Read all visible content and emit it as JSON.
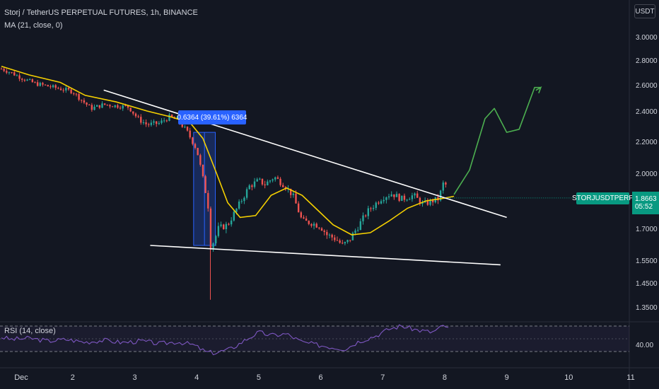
{
  "header": {
    "symbol_line": "Storj / TetherUS PERPETUAL FUTURES, 1h, BINANCE",
    "indicator": "MA (21, close, 0)",
    "currency_button": "USDT"
  },
  "price_tag": {
    "symbol": "STORJUSDTPERP",
    "price": "1.8663",
    "countdown": "05:52"
  },
  "measure_label": "0.6364 (39.61%) 6364",
  "rsi": {
    "label": "RSI (14, close)",
    "level_label": "40.00"
  },
  "colors": {
    "background": "#131722",
    "up": "#26a69a",
    "down": "#ef5350",
    "ma": "#f5d000",
    "projection": "#4caf50",
    "rsi": "#7e57c2",
    "trendline": "#ffffff"
  },
  "chart_data": {
    "type": "candlestick",
    "y_axis_labels": [
      "3.0000",
      "2.8000",
      "2.6000",
      "2.4000",
      "2.2000",
      "2.0000",
      "1.7000",
      "1.5500",
      "1.4500",
      "1.3500"
    ],
    "x_axis_labels": [
      "Dec",
      "2",
      "3",
      "4",
      "5",
      "6",
      "7",
      "8",
      "9",
      "10",
      "11"
    ],
    "x_range_days": [
      0.85,
      11.0
    ],
    "y_range": [
      1.3,
      3.1
    ],
    "close_series": [
      [
        0.85,
        2.73
      ],
      [
        1.0,
        2.7
      ],
      [
        1.2,
        2.65
      ],
      [
        1.4,
        2.61
      ],
      [
        1.6,
        2.59
      ],
      [
        1.8,
        2.57
      ],
      [
        2.0,
        2.55
      ],
      [
        2.15,
        2.48
      ],
      [
        2.3,
        2.42
      ],
      [
        2.5,
        2.45
      ],
      [
        2.7,
        2.44
      ],
      [
        2.9,
        2.43
      ],
      [
        3.05,
        2.35
      ],
      [
        3.2,
        2.31
      ],
      [
        3.4,
        2.32
      ],
      [
        3.55,
        2.36
      ],
      [
        3.7,
        2.34
      ],
      [
        3.85,
        2.26
      ],
      [
        4.0,
        2.15
      ],
      [
        4.1,
        1.97
      ],
      [
        4.18,
        1.84
      ],
      [
        4.22,
        1.62
      ],
      [
        4.28,
        1.64
      ],
      [
        4.35,
        1.7
      ],
      [
        4.5,
        1.72
      ],
      [
        4.7,
        1.84
      ],
      [
        4.85,
        1.93
      ],
      [
        5.0,
        1.96
      ],
      [
        5.1,
        1.94
      ],
      [
        5.25,
        1.98
      ],
      [
        5.4,
        1.94
      ],
      [
        5.55,
        1.88
      ],
      [
        5.7,
        1.74
      ],
      [
        5.85,
        1.73
      ],
      [
        6.0,
        1.71
      ],
      [
        6.1,
        1.67
      ],
      [
        6.25,
        1.65
      ],
      [
        6.35,
        1.62
      ],
      [
        6.45,
        1.64
      ],
      [
        6.6,
        1.71
      ],
      [
        6.75,
        1.79
      ],
      [
        6.9,
        1.84
      ],
      [
        7.0,
        1.87
      ],
      [
        7.15,
        1.89
      ],
      [
        7.3,
        1.86
      ],
      [
        7.5,
        1.88
      ],
      [
        7.65,
        1.83
      ],
      [
        7.8,
        1.85
      ],
      [
        7.9,
        1.86
      ],
      [
        8.0,
        1.97
      ],
      [
        8.05,
        1.87
      ]
    ],
    "ma_series": [
      [
        0.85,
        2.75
      ],
      [
        1.3,
        2.68
      ],
      [
        1.8,
        2.62
      ],
      [
        2.2,
        2.52
      ],
      [
        2.7,
        2.47
      ],
      [
        3.2,
        2.4
      ],
      [
        3.6,
        2.36
      ],
      [
        3.9,
        2.32
      ],
      [
        4.1,
        2.22
      ],
      [
        4.3,
        2.02
      ],
      [
        4.5,
        1.84
      ],
      [
        4.7,
        1.76
      ],
      [
        4.95,
        1.77
      ],
      [
        5.2,
        1.88
      ],
      [
        5.45,
        1.92
      ],
      [
        5.7,
        1.88
      ],
      [
        5.95,
        1.8
      ],
      [
        6.2,
        1.72
      ],
      [
        6.5,
        1.67
      ],
      [
        6.8,
        1.68
      ],
      [
        7.1,
        1.74
      ],
      [
        7.4,
        1.81
      ],
      [
        7.7,
        1.85
      ],
      [
        8.0,
        1.865
      ],
      [
        8.15,
        1.875
      ]
    ],
    "trendlines": [
      {
        "name": "upper",
        "points": [
          [
            2.5,
            2.56
          ],
          [
            9.0,
            1.76
          ]
        ]
      },
      {
        "name": "lower",
        "points": [
          [
            3.25,
            1.62
          ],
          [
            8.9,
            1.53
          ]
        ]
      }
    ],
    "measure_box": {
      "x_range": [
        3.95,
        4.3
      ],
      "y_range": [
        1.62,
        2.26
      ]
    },
    "projection": [
      [
        8.15,
        1.885
      ],
      [
        8.4,
        2.02
      ],
      [
        8.65,
        2.35
      ],
      [
        8.8,
        2.42
      ],
      [
        9.0,
        2.26
      ],
      [
        9.2,
        2.28
      ],
      [
        9.45,
        2.58
      ],
      [
        9.55,
        2.58
      ]
    ],
    "rsi_series": [
      [
        0.85,
        0.58
      ],
      [
        1.0,
        0.52
      ],
      [
        1.3,
        0.55
      ],
      [
        1.6,
        0.48
      ],
      [
        1.9,
        0.52
      ],
      [
        2.2,
        0.45
      ],
      [
        2.5,
        0.5
      ],
      [
        2.8,
        0.44
      ],
      [
        3.1,
        0.48
      ],
      [
        3.4,
        0.41
      ],
      [
        3.7,
        0.46
      ],
      [
        3.95,
        0.38
      ],
      [
        4.15,
        0.2
      ],
      [
        4.3,
        0.18
      ],
      [
        4.55,
        0.28
      ],
      [
        4.8,
        0.52
      ],
      [
        5.0,
        0.7
      ],
      [
        5.2,
        0.62
      ],
      [
        5.45,
        0.66
      ],
      [
        5.7,
        0.45
      ],
      [
        5.95,
        0.38
      ],
      [
        6.2,
        0.32
      ],
      [
        6.4,
        0.28
      ],
      [
        6.6,
        0.46
      ],
      [
        6.9,
        0.62
      ],
      [
        7.1,
        0.78
      ],
      [
        7.3,
        0.86
      ],
      [
        7.55,
        0.76
      ],
      [
        7.8,
        0.7
      ],
      [
        8.0,
        0.88
      ],
      [
        8.1,
        0.72
      ]
    ]
  }
}
